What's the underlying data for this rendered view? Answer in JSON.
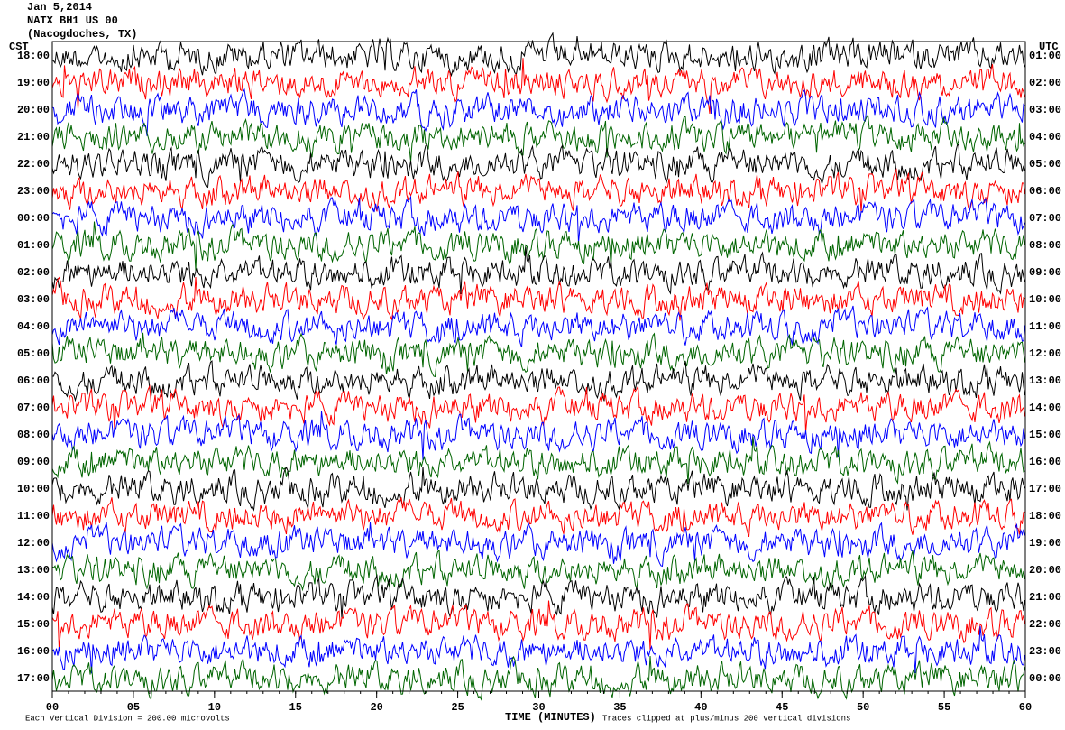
{
  "chart_data": {
    "type": "helicorder",
    "title_lines": [
      "Jan 5,2014",
      "NATX BH1 US 00",
      "(Nacogdoches, TX)"
    ],
    "left_label": "CST",
    "right_label": "UTC",
    "x_label": "TIME (MINUTES)",
    "scale_note": "Each Vertical Division =  200.00 microvolts",
    "clip_note": "Traces clipped at plus/minus 200 vertical divisions",
    "xlim": [
      0,
      60
    ],
    "xticks": [
      {
        "value": 0,
        "label": "00"
      },
      {
        "value": 5,
        "label": "05"
      },
      10,
      15,
      20,
      25,
      30,
      35,
      40,
      45,
      50,
      55,
      60
    ],
    "colors": [
      "#000000",
      "#ff0000",
      "#0000ff",
      "#006400"
    ],
    "rows": [
      {
        "left": "18:00",
        "right": "01:00"
      },
      {
        "left": "19:00",
        "right": "02:00"
      },
      {
        "left": "20:00",
        "right": "03:00"
      },
      {
        "left": "21:00",
        "right": "04:00"
      },
      {
        "left": "22:00",
        "right": "05:00"
      },
      {
        "left": "23:00",
        "right": "06:00"
      },
      {
        "left": "00:00",
        "right": "07:00"
      },
      {
        "left": "01:00",
        "right": "08:00"
      },
      {
        "left": "02:00",
        "right": "09:00"
      },
      {
        "left": "03:00",
        "right": "10:00"
      },
      {
        "left": "04:00",
        "right": "11:00"
      },
      {
        "left": "05:00",
        "right": "12:00"
      },
      {
        "left": "06:00",
        "right": "13:00"
      },
      {
        "left": "07:00",
        "right": "14:00"
      },
      {
        "left": "08:00",
        "right": "15:00"
      },
      {
        "left": "09:00",
        "right": "16:00"
      },
      {
        "left": "10:00",
        "right": "17:00"
      },
      {
        "left": "11:00",
        "right": "18:00"
      },
      {
        "left": "12:00",
        "right": "19:00"
      },
      {
        "left": "13:00",
        "right": "20:00"
      },
      {
        "left": "14:00",
        "right": "21:00"
      },
      {
        "left": "15:00",
        "right": "22:00"
      },
      {
        "left": "16:00",
        "right": "23:00"
      },
      {
        "left": "17:00",
        "right": "00:00"
      }
    ]
  }
}
